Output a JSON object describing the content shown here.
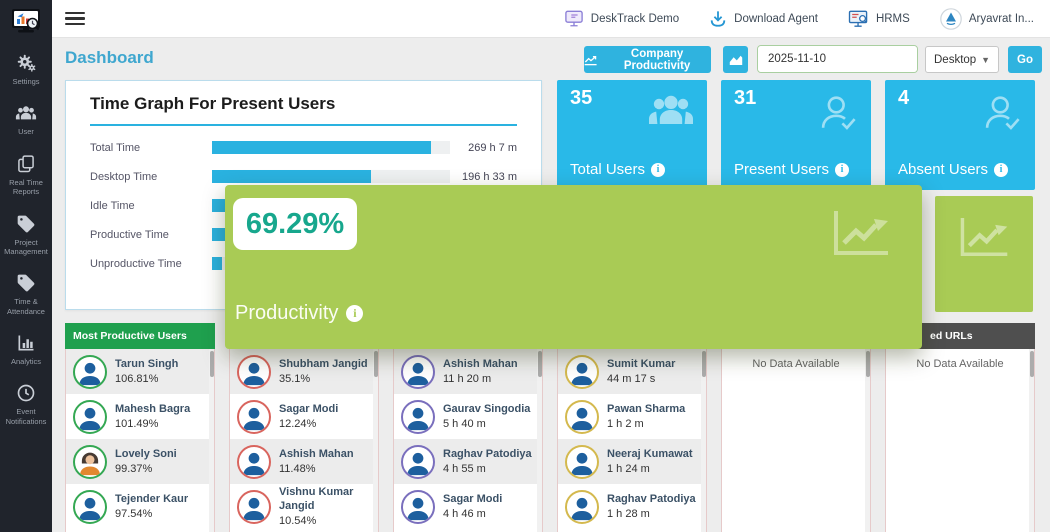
{
  "app": {
    "name": "DeskTrack"
  },
  "sidebar": {
    "items": [
      {
        "label": "Settings",
        "icon": "gears-icon"
      },
      {
        "label": "User",
        "icon": "users-icon"
      },
      {
        "label": "Real Time Reports",
        "icon": "copy-pages-icon"
      },
      {
        "label": "Project Management",
        "icon": "tag-icon"
      },
      {
        "label": "Time & Attendance",
        "icon": "tag-icon"
      },
      {
        "label": "Analytics",
        "icon": "bar-chart-icon"
      },
      {
        "label": "Event Notifications",
        "icon": "clock-icon"
      }
    ]
  },
  "topbar": {
    "items": [
      {
        "label": "DeskTrack Demo",
        "icon": "demo-monitor-icon"
      },
      {
        "label": "Download Agent",
        "icon": "download-icon"
      },
      {
        "label": "HRMS",
        "icon": "hrms-monitor-icon"
      },
      {
        "label": "Aryavrat In...",
        "icon": "company-avatar"
      }
    ]
  },
  "header": {
    "title": "Dashboard",
    "company_productivity_label": "Company Productivity",
    "date_value": "2025-11-10",
    "device_selected": "Desktop",
    "go_label": "Go"
  },
  "time_graph": {
    "title": "Time Graph For Present Users",
    "bar_color": "#2ab2e0",
    "rows": [
      {
        "label": "Total Time",
        "value": "269 h 7 m",
        "fill_pct": 92
      },
      {
        "label": "Desktop Time",
        "value": "196 h 33 m",
        "fill_pct": 67
      },
      {
        "label": "Idle Time",
        "value": "",
        "fill_pct": 40
      },
      {
        "label": "Productive Time",
        "value": "",
        "fill_pct": 55
      },
      {
        "label": "Unproductive Time",
        "value": "",
        "fill_pct": 4
      }
    ]
  },
  "stat_cards": [
    {
      "value": "35",
      "label": "Total Users",
      "icon": "users-group-icon",
      "color": "#29b9e8"
    },
    {
      "value": "31",
      "label": "Present Users",
      "icon": "person-check-icon",
      "color": "#29b9e8"
    },
    {
      "value": "4",
      "label": "Absent Users",
      "icon": "person-check-icon",
      "color": "#29b9e8"
    }
  ],
  "productivity_overlay": {
    "value": "69.29%",
    "label": "Productivity",
    "icon": "trend-chart-icon",
    "bg": "#a9cb55",
    "value_color": "#17a78d"
  },
  "mini_green_card": {
    "icon": "trend-chart-icon",
    "bg": "#a9cb55"
  },
  "panels": [
    {
      "header": "Most Productive Users",
      "header_bg": "#1fa04e",
      "ring": "#34a853",
      "users": [
        {
          "name": "Tarun Singh",
          "value": "106.81%"
        },
        {
          "name": "Mahesh Bagra",
          "value": "101.49%"
        },
        {
          "name": "Lovely Soni",
          "value": "99.37%",
          "avatar": "female"
        },
        {
          "name": "Tejender Kaur",
          "value": "97.54%"
        }
      ]
    },
    {
      "header": "",
      "header_bg": "#4f4f4f",
      "ring": "#d9655e",
      "users": [
        {
          "name": "Shubham Jangid",
          "value": "35.1%"
        },
        {
          "name": "Sagar Modi",
          "value": "12.24%"
        },
        {
          "name": "Ashish Mahan",
          "value": "11.48%"
        },
        {
          "name": "Vishnu Kumar Jangid",
          "value": "10.54%"
        }
      ]
    },
    {
      "header": "",
      "header_bg": "#4f4f4f",
      "ring": "#7a6fbd",
      "users": [
        {
          "name": "Ashish Mahan",
          "value": "11 h 20 m"
        },
        {
          "name": "Gaurav Singodia",
          "value": "5 h 40 m"
        },
        {
          "name": "Raghav Patodiya",
          "value": "4 h 55 m"
        },
        {
          "name": "Sagar Modi",
          "value": "4 h 46 m"
        }
      ]
    },
    {
      "header": "",
      "header_bg": "#4f4f4f",
      "ring": "#d4b94e",
      "users": [
        {
          "name": "Sumit Kumar",
          "value": "44 m 17 s"
        },
        {
          "name": "Pawan Sharma",
          "value": "1 h 2 m"
        },
        {
          "name": "Neeraj Kumawat",
          "value": "1 h 24 m"
        },
        {
          "name": "Raghav Patodiya",
          "value": "1 h 28 m"
        }
      ]
    },
    {
      "header": "",
      "header_bg": "#4f4f4f",
      "ring": "#cccccc",
      "users": [],
      "empty_text": "No Data Available"
    },
    {
      "header": "ed URLs",
      "header_bg": "#4f4f4f",
      "header_pad": 45,
      "ring": "#cccccc",
      "users": [],
      "empty_text": "No Data Available"
    }
  ],
  "colors": {
    "accent_cyan": "#29b9e8",
    "accent_green": "#a9cb55",
    "header_green": "#1fa04e",
    "teal_value": "#17a78d",
    "sidebar_bg": "#20242c"
  }
}
